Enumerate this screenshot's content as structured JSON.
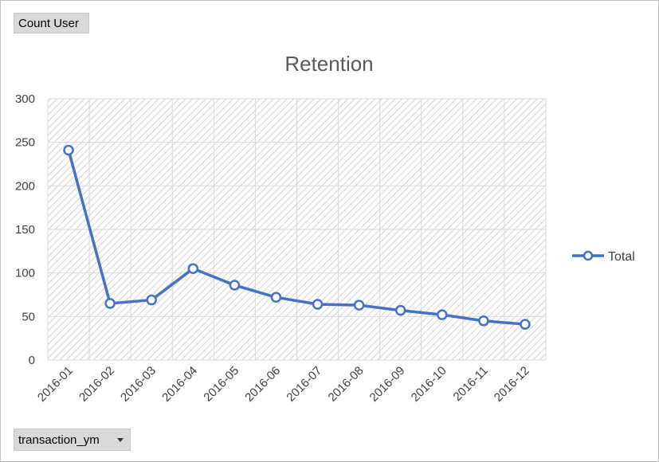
{
  "pivot": {
    "value_field": "Count User",
    "axis_field": "transaction_ym"
  },
  "chart_data": {
    "type": "line",
    "title": "Retention",
    "xlabel": "",
    "ylabel": "",
    "categories": [
      "2016-01",
      "2016-02",
      "2016-03",
      "2016-04",
      "2016-05",
      "2016-06",
      "2016-07",
      "2016-08",
      "2016-09",
      "2016-10",
      "2016-11",
      "2016-12"
    ],
    "series": [
      {
        "name": "Total",
        "values": [
          241,
          65,
          69,
          105,
          86,
          72,
          64,
          63,
          57,
          52,
          45,
          41
        ],
        "color": "#4472c4"
      }
    ],
    "yticks": [
      "0",
      "50",
      "100",
      "150",
      "200",
      "250",
      "300"
    ],
    "ylim": [
      0,
      300
    ],
    "grid": true,
    "legend": "right"
  }
}
